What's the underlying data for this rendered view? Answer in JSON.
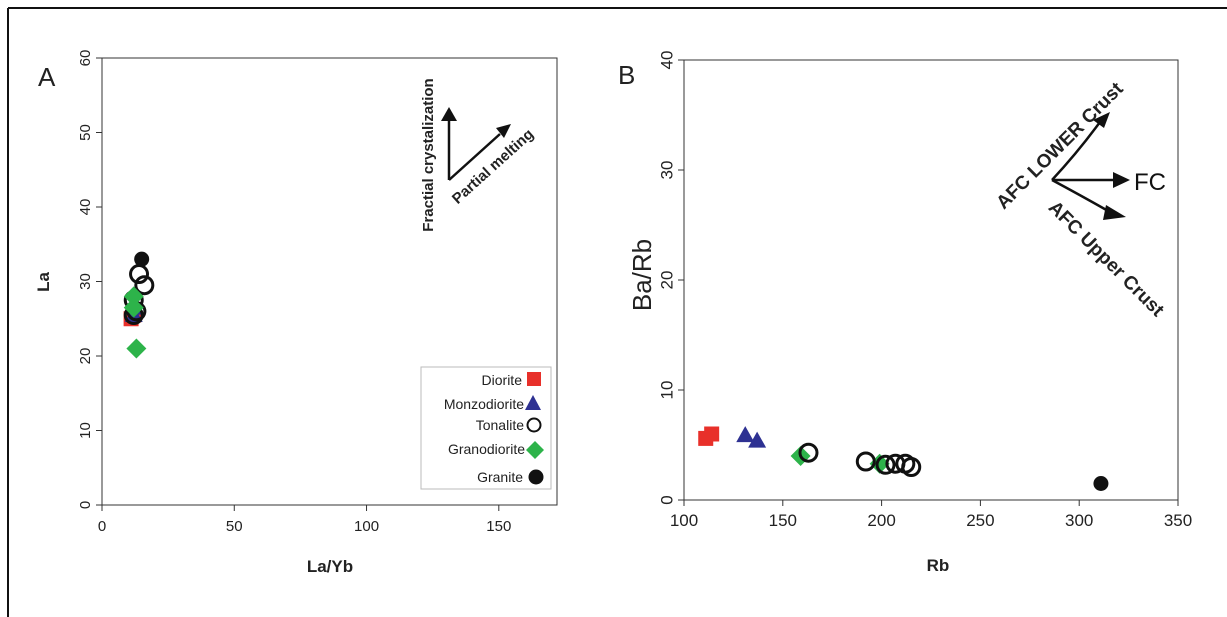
{
  "chart_data": [
    {
      "type": "scatter",
      "panel_label": "A",
      "xlabel": "La/Yb",
      "ylabel": "La",
      "xlim": [
        0,
        172
      ],
      "ylim": [
        0,
        60
      ],
      "xticks": [
        0,
        50,
        100,
        150
      ],
      "yticks": [
        0,
        10,
        20,
        30,
        40,
        50,
        60
      ],
      "grid": false,
      "legend_position": "bottom-right",
      "legend": [
        "Diorite",
        "Monzodiorite",
        "Tonalite",
        "Granodiorite",
        "Granite"
      ],
      "series": [
        {
          "name": "Diorite",
          "marker": "square",
          "color": "#e8302a",
          "points": [
            [
              11,
              25
            ],
            [
              12,
              25.5
            ]
          ]
        },
        {
          "name": "Monzodiorite",
          "marker": "triangle",
          "color": "#2e3192",
          "points": [
            [
              12,
              26.5
            ],
            [
              12,
              25.5
            ]
          ]
        },
        {
          "name": "Tonalite",
          "marker": "open-circle",
          "color": "#111111",
          "points": [
            [
              12,
              27.5
            ],
            [
              13,
              26
            ],
            [
              14,
              31
            ],
            [
              16,
              29.5
            ],
            [
              12,
              25.5
            ]
          ]
        },
        {
          "name": "Granodiorite",
          "marker": "diamond",
          "color": "#2db34a",
          "points": [
            [
              13,
              21
            ],
            [
              12,
              28
            ],
            [
              12,
              26.5
            ]
          ]
        },
        {
          "name": "Granite",
          "marker": "filled-circle",
          "color": "#111111",
          "points": [
            [
              15,
              33
            ]
          ]
        }
      ],
      "annotations": {
        "vertical_arrow": "Fractial crystalization",
        "diagonal_arrow": "Partial melting"
      }
    },
    {
      "type": "scatter",
      "panel_label": "B",
      "xlabel": "Rb",
      "ylabel": "Ba/Rb",
      "xlim": [
        100,
        350
      ],
      "ylim": [
        0,
        40
      ],
      "xticks": [
        100,
        150,
        200,
        250,
        300,
        350
      ],
      "yticks": [
        0,
        10,
        20,
        30,
        40
      ],
      "grid": false,
      "series": [
        {
          "name": "Diorite",
          "marker": "square",
          "color": "#e8302a",
          "points": [
            [
              111,
              5.6
            ],
            [
              114,
              6.0
            ]
          ]
        },
        {
          "name": "Monzodiorite",
          "marker": "triangle",
          "color": "#2e3192",
          "points": [
            [
              131,
              5.9
            ],
            [
              137,
              5.4
            ]
          ]
        },
        {
          "name": "Granodiorite",
          "marker": "diamond",
          "color": "#2db34a",
          "points": [
            [
              159,
              4.0
            ],
            [
              199,
              3.3
            ]
          ]
        },
        {
          "name": "Tonalite",
          "marker": "open-circle",
          "color": "#111111",
          "points": [
            [
              163,
              4.3
            ],
            [
              192,
              3.5
            ],
            [
              202,
              3.2
            ],
            [
              207,
              3.3
            ],
            [
              212,
              3.3
            ],
            [
              215,
              3.0
            ]
          ]
        },
        {
          "name": "Granite",
          "marker": "filled-circle",
          "color": "#111111",
          "points": [
            [
              311,
              1.5
            ]
          ]
        }
      ],
      "annotations": {
        "fc_label": "FC",
        "afc_lower": "AFC LOWER Crust",
        "afc_upper": "AFC Upper Crust"
      }
    }
  ]
}
